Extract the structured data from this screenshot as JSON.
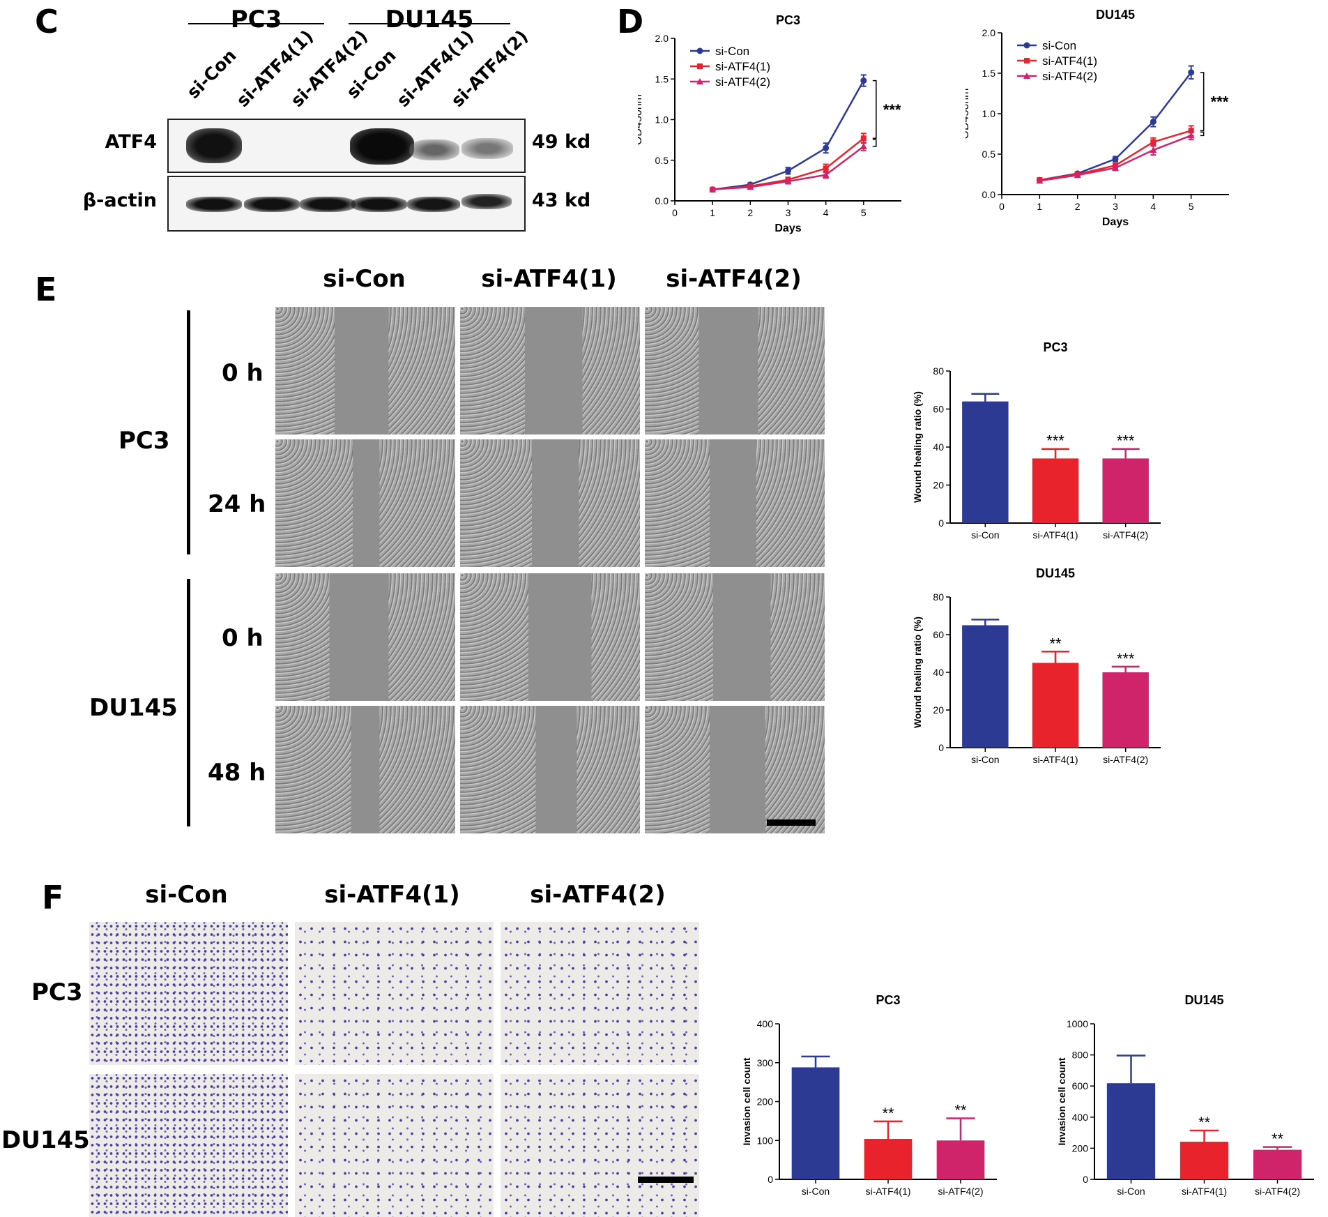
{
  "panels": {
    "c": "C",
    "d": "D",
    "e": "E",
    "f": "F"
  },
  "panel_c": {
    "groups": [
      "PC3",
      "DU145"
    ],
    "lanes": [
      "si-Con",
      "si-ATF4(1)",
      "si-ATF4(2)",
      "si-Con",
      "si-ATF4(1)",
      "si-ATF4(2)"
    ],
    "rows": [
      {
        "label": "ATF4",
        "size": "49 kd"
      },
      {
        "label": "β-actin",
        "size": "43 kd"
      }
    ],
    "band_intensity": {
      "ATF4": [
        1.0,
        0.0,
        0.0,
        1.0,
        0.25,
        0.2
      ],
      "beta_actin": [
        1.0,
        1.0,
        1.0,
        1.0,
        0.9,
        0.75
      ]
    }
  },
  "panel_e": {
    "columns": [
      "si-Con",
      "si-ATF4(1)",
      "si-ATF4(2)"
    ],
    "cell_lines": [
      "PC3",
      "DU145"
    ],
    "timepoints": [
      [
        "0 h",
        "24 h"
      ],
      [
        "0 h",
        "48 h"
      ]
    ]
  },
  "panel_f": {
    "columns": [
      "si-Con",
      "si-ATF4(1)",
      "si-ATF4(2)"
    ],
    "cell_lines": [
      "PC3",
      "DU145"
    ]
  },
  "colors": {
    "si_con": "#2c3a94",
    "si_atf4_1": "#e8232b",
    "si_atf4_2": "#d0246a"
  },
  "chart_data": [
    {
      "id": "d-pc3",
      "type": "line",
      "title": "PC3",
      "xlabel": "Days",
      "ylabel": "OD450nm",
      "xlim": [
        0,
        6
      ],
      "ylim": [
        0,
        2.0
      ],
      "xticks": [
        0,
        1,
        2,
        3,
        4,
        5
      ],
      "yticks": [
        0.0,
        0.5,
        1.0,
        1.5,
        2.0
      ],
      "x": [
        1,
        2,
        3,
        4,
        5
      ],
      "series": [
        {
          "name": "si-Con",
          "values": [
            0.14,
            0.2,
            0.37,
            0.65,
            1.48
          ],
          "err": [
            0.01,
            0.02,
            0.04,
            0.06,
            0.07
          ],
          "marker": "circle"
        },
        {
          "name": "si-ATF4(1)",
          "values": [
            0.14,
            0.18,
            0.26,
            0.4,
            0.77
          ],
          "err": [
            0.01,
            0.02,
            0.03,
            0.05,
            0.06
          ],
          "marker": "square"
        },
        {
          "name": "si-ATF4(2)",
          "values": [
            0.14,
            0.17,
            0.24,
            0.32,
            0.67
          ],
          "err": [
            0.01,
            0.02,
            0.03,
            0.04,
            0.05
          ],
          "marker": "triangle"
        }
      ],
      "significance": "***"
    },
    {
      "id": "d-du145",
      "type": "line",
      "title": "DU145",
      "xlabel": "Days",
      "ylabel": "OD450nm",
      "xlim": [
        0,
        6
      ],
      "ylim": [
        0,
        2.0
      ],
      "xticks": [
        0,
        1,
        2,
        3,
        4,
        5
      ],
      "yticks": [
        0.0,
        0.5,
        1.0,
        1.5,
        2.0
      ],
      "x": [
        1,
        2,
        3,
        4,
        5
      ],
      "series": [
        {
          "name": "si-Con",
          "values": [
            0.18,
            0.26,
            0.44,
            0.9,
            1.51
          ],
          "err": [
            0.01,
            0.02,
            0.03,
            0.06,
            0.08
          ],
          "marker": "circle"
        },
        {
          "name": "si-ATF4(1)",
          "values": [
            0.18,
            0.25,
            0.36,
            0.65,
            0.79
          ],
          "err": [
            0.01,
            0.02,
            0.03,
            0.05,
            0.06
          ],
          "marker": "square"
        },
        {
          "name": "si-ATF4(2)",
          "values": [
            0.17,
            0.24,
            0.33,
            0.55,
            0.73
          ],
          "err": [
            0.01,
            0.02,
            0.03,
            0.06,
            0.05
          ],
          "marker": "triangle"
        }
      ],
      "significance": "***"
    },
    {
      "id": "e-pc3",
      "type": "bar",
      "title": "PC3",
      "ylabel": "Wound healing ratio (%)",
      "categories": [
        "si-Con",
        "si-ATF4(1)",
        "si-ATF4(2)"
      ],
      "values": [
        64,
        34,
        34
      ],
      "err": [
        4,
        5,
        5
      ],
      "ylim": [
        0,
        80
      ],
      "yticks": [
        0,
        20,
        40,
        60,
        80
      ],
      "annotations": [
        "",
        "***",
        "***"
      ]
    },
    {
      "id": "e-du145",
      "type": "bar",
      "title": "DU145",
      "ylabel": "Wound healing ratio (%)",
      "categories": [
        "si-Con",
        "si-ATF4(1)",
        "si-ATF4(2)"
      ],
      "values": [
        65,
        45,
        40
      ],
      "err": [
        3,
        6,
        3
      ],
      "ylim": [
        0,
        80
      ],
      "yticks": [
        0,
        20,
        40,
        60,
        80
      ],
      "annotations": [
        "",
        "**",
        "***"
      ]
    },
    {
      "id": "f-pc3",
      "type": "bar",
      "title": "PC3",
      "ylabel": "Invasion cell count",
      "categories": [
        "si-Con",
        "si-ATF4(1)",
        "si-ATF4(2)"
      ],
      "values": [
        288,
        104,
        100
      ],
      "err": [
        28,
        45,
        57
      ],
      "ylim": [
        0,
        400
      ],
      "yticks": [
        0,
        100,
        200,
        300,
        400
      ],
      "annotations": [
        "",
        "**",
        "**"
      ]
    },
    {
      "id": "f-du145",
      "type": "bar",
      "title": "DU145",
      "ylabel": "Invasion cell count",
      "categories": [
        "si-Con",
        "si-ATF4(1)",
        "si-ATF4(2)"
      ],
      "values": [
        618,
        242,
        190
      ],
      "err": [
        178,
        72,
        18
      ],
      "ylim": [
        0,
        1000
      ],
      "yticks": [
        0,
        200,
        400,
        600,
        800,
        1000
      ],
      "annotations": [
        "",
        "**",
        "**"
      ]
    }
  ]
}
